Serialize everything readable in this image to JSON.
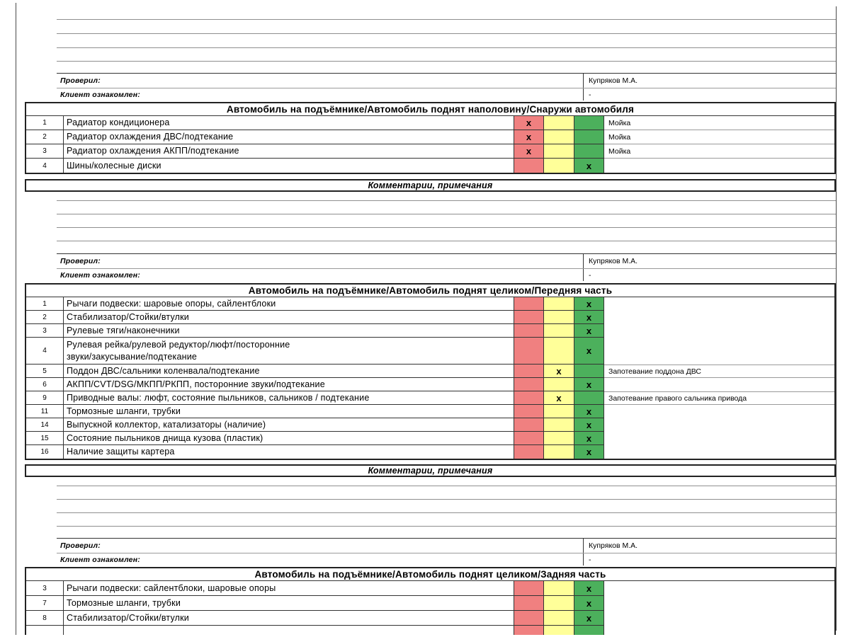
{
  "comments_header": "Комментарии, примечания",
  "signoff": {
    "inspector_label": "Проверил:",
    "client_label": "Клиент ознакомлен:",
    "blocks": [
      {
        "inspector": "Купряков М.А.",
        "client": "-"
      },
      {
        "inspector": "Купряков М.А.",
        "client": "-"
      },
      {
        "inspector": "Купряков М.А.",
        "client": "-"
      }
    ]
  },
  "colors": {
    "red": "#F08080",
    "yellow": "#FFFF99",
    "green": "#4CB05C"
  },
  "sections": [
    {
      "title": "Автомобиль на подъёмнике/Автомобиль поднят наполовину/Снаружи автомобиля",
      "rows": [
        {
          "num": "1",
          "name": "Радиатор кондиционера",
          "cells": {
            "red": "x",
            "yellow": "",
            "green": ""
          },
          "note": "Мойка"
        },
        {
          "num": "2",
          "name": "Радиатор охлаждения ДВС/подтекание",
          "cells": {
            "red": "x",
            "yellow": "",
            "green": ""
          },
          "note": "Мойка"
        },
        {
          "num": "3",
          "name": "Радиатор охлаждения АКПП/подтекание",
          "cells": {
            "red": "x",
            "yellow": "",
            "green": ""
          },
          "note": "Мойка"
        },
        {
          "num": "4",
          "name": "Шины/колесные диски",
          "cells": {
            "red": "",
            "yellow": "",
            "green": "x"
          },
          "note": ""
        }
      ]
    },
    {
      "title": "Автомобиль на подъёмнике/Автомобиль поднят целиком/Передняя часть",
      "rows": [
        {
          "num": "1",
          "name": "Рычаги подвески: шаровые опоры, сайлентблоки",
          "cells": {
            "red": "",
            "yellow": "",
            "green": "x"
          },
          "note": ""
        },
        {
          "num": "2",
          "name": "Стабилизатор/Стойки/втулки",
          "cells": {
            "red": "",
            "yellow": "",
            "green": "x"
          },
          "note": ""
        },
        {
          "num": "3",
          "name": "Рулевые тяги/наконечники",
          "cells": {
            "red": "",
            "yellow": "",
            "green": "x"
          },
          "note": ""
        },
        {
          "num": "4",
          "name": "Рулевая рейка/рулевой редуктор/люфт/посторонние\nзвуки/закусывание/подтекание",
          "cells": {
            "red": "",
            "yellow": "",
            "green": "x"
          },
          "note": ""
        },
        {
          "num": "5",
          "name": "Поддон ДВС/сальники коленвала/подтекание",
          "cells": {
            "red": "",
            "yellow": "x",
            "green": ""
          },
          "note": "Запотевание поддона ДВС"
        },
        {
          "num": "6",
          "name": "АКПП/CVT/DSG/МКПП/РКПП, посторонние звуки/подтекание",
          "cells": {
            "red": "",
            "yellow": "",
            "green": "x"
          },
          "note": ""
        },
        {
          "num": "9",
          "name": "Приводные валы: люфт, состояние пыльников, сальников / подтекание",
          "cells": {
            "red": "",
            "yellow": "x",
            "green": ""
          },
          "note": "Запотевание правого сальника привода"
        },
        {
          "num": "11",
          "name": "Тормозные шланги, трубки",
          "cells": {
            "red": "",
            "yellow": "",
            "green": "x"
          },
          "note": ""
        },
        {
          "num": "14",
          "name": "Выпускной коллектор, катализаторы (наличие)",
          "cells": {
            "red": "",
            "yellow": "",
            "green": "x"
          },
          "note": ""
        },
        {
          "num": "15",
          "name": "Состояние пыльников днища кузова (пластик)",
          "cells": {
            "red": "",
            "yellow": "",
            "green": "x"
          },
          "note": ""
        },
        {
          "num": "16",
          "name": "Наличие защиты картера",
          "cells": {
            "red": "",
            "yellow": "",
            "green": "x"
          },
          "note": ""
        }
      ]
    },
    {
      "title": "Автомобиль на подъёмнике/Автомобиль поднят целиком/Задняя часть",
      "rows": [
        {
          "num": "3",
          "name": "Рычаги подвески: сайлентблоки, шаровые опоры",
          "cells": {
            "red": "",
            "yellow": "",
            "green": "x"
          },
          "note": ""
        },
        {
          "num": "7",
          "name": "Тормозные шланги, трубки",
          "cells": {
            "red": "",
            "yellow": "",
            "green": "x"
          },
          "note": ""
        },
        {
          "num": "8",
          "name": "Стабилизатор/Стойки/втулки",
          "cells": {
            "red": "",
            "yellow": "",
            "green": "x"
          },
          "note": ""
        },
        {
          "num": "",
          "name": "",
          "cells": {
            "red": "",
            "yellow": "",
            "green": ""
          },
          "note": ""
        }
      ]
    }
  ]
}
